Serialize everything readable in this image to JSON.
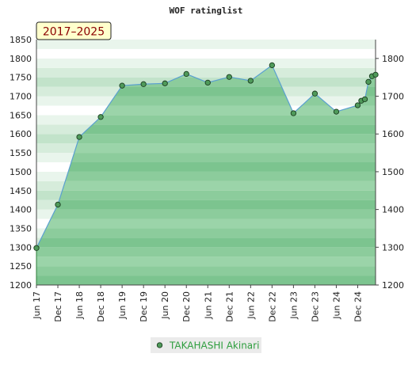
{
  "chart_data": {
    "type": "area",
    "title": "WOF ratinglist",
    "badge": "2017–2025",
    "xlabel": "",
    "ylabel": "",
    "ylim": [
      1200,
      1850
    ],
    "y_left_ticks": [
      1200,
      1250,
      1300,
      1350,
      1400,
      1450,
      1500,
      1550,
      1600,
      1650,
      1700,
      1750,
      1800,
      1850
    ],
    "y_right_ticks": [
      1200,
      1300,
      1400,
      1500,
      1600,
      1700,
      1800
    ],
    "x_ticks": [
      "Jun 17",
      "Dec 17",
      "Jun 18",
      "Dec 18",
      "Jun 19",
      "Dec 19",
      "Jun 20",
      "Dec 20",
      "Jun 21",
      "Dec 21",
      "Jun 22",
      "Dec 22",
      "Jun 23",
      "Dec 23",
      "Jun 24",
      "Dec 24"
    ],
    "grid": true,
    "legend_position": "bottom-center",
    "series": [
      {
        "name": "TAKAHASHI Akinari",
        "color": "#5aa0d0",
        "fill": "#5cb870",
        "marker_color": "#4f9a5a",
        "points": [
          {
            "x": 0,
            "y": 1298
          },
          {
            "x": 6,
            "y": 1413
          },
          {
            "x": 12,
            "y": 1592
          },
          {
            "x": 18,
            "y": 1645
          },
          {
            "x": 24,
            "y": 1728
          },
          {
            "x": 30,
            "y": 1732
          },
          {
            "x": 36,
            "y": 1734
          },
          {
            "x": 42,
            "y": 1759
          },
          {
            "x": 48,
            "y": 1736
          },
          {
            "x": 54,
            "y": 1751
          },
          {
            "x": 60,
            "y": 1741
          },
          {
            "x": 66,
            "y": 1782
          },
          {
            "x": 72,
            "y": 1655
          },
          {
            "x": 78,
            "y": 1707
          },
          {
            "x": 84,
            "y": 1659
          },
          {
            "x": 90,
            "y": 1676
          },
          {
            "x": 91,
            "y": 1688
          },
          {
            "x": 92,
            "y": 1692
          },
          {
            "x": 93,
            "y": 1738
          },
          {
            "x": 94,
            "y": 1753
          },
          {
            "x": 95,
            "y": 1757
          }
        ]
      }
    ]
  }
}
